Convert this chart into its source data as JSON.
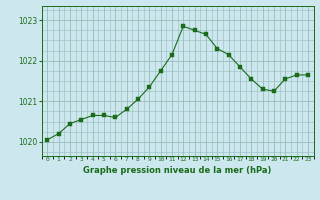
{
  "x": [
    0,
    1,
    2,
    3,
    4,
    5,
    6,
    7,
    8,
    9,
    10,
    11,
    12,
    13,
    14,
    15,
    16,
    17,
    18,
    19,
    20,
    21,
    22,
    23
  ],
  "y": [
    1020.05,
    1020.2,
    1020.45,
    1020.55,
    1020.65,
    1020.65,
    1020.6,
    1020.8,
    1021.05,
    1021.35,
    1021.75,
    1022.15,
    1022.85,
    1022.75,
    1022.65,
    1022.3,
    1022.15,
    1021.85,
    1021.55,
    1021.3,
    1021.25,
    1021.55,
    1021.65,
    1021.65
  ],
  "line_color": "#1a6b1a",
  "marker_color": "#1a6b1a",
  "bg_color": "#cce8ee",
  "grid_color": "#99bbbb",
  "xlabel": "Graphe pression niveau de la mer (hPa)",
  "xlabel_color": "#1a6b1a",
  "ylabel_ticks": [
    1020,
    1021,
    1022,
    1023
  ],
  "ylim": [
    1019.65,
    1023.35
  ],
  "xlim": [
    -0.5,
    23.5
  ],
  "xtick_labels": [
    "0",
    "1",
    "2",
    "3",
    "4",
    "5",
    "6",
    "7",
    "8",
    "9",
    "10",
    "11",
    "12",
    "13",
    "14",
    "15",
    "16",
    "17",
    "18",
    "19",
    "20",
    "21",
    "22",
    "23"
  ],
  "axis_color": "#1a6b1a"
}
